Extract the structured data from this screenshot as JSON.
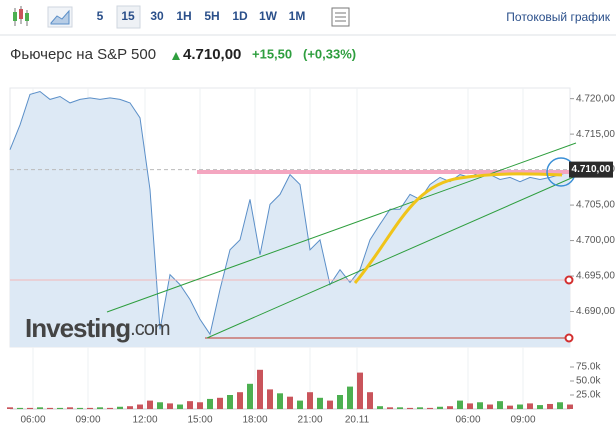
{
  "toolbar": {
    "intervals": [
      "5",
      "15",
      "30",
      "1H",
      "5H",
      "1D",
      "1W",
      "1M"
    ],
    "active": 1,
    "stream": "Потоковый график"
  },
  "header": {
    "name": "Фьючерс на S&P 500",
    "price": "4.710,00",
    "change": "+15,50",
    "change_pct": "(+0,33%)"
  },
  "chart_data": {
    "type": "line",
    "watermark": {
      "main": "Investing",
      "suffix": ".com"
    },
    "series": [
      {
        "color": "#5b8fc8",
        "fill": "#dde9f5",
        "values": [
          4712.8,
          4716.3,
          4720.6,
          4721,
          4719.9,
          4720.3,
          4719.4,
          4719.9,
          4720.1,
          4719.9,
          4720.1,
          4719.9,
          4719.4,
          4717.3,
          4707.2,
          4687.5,
          4695.2,
          4693.8,
          4691.7,
          4688.9,
          4686.8,
          4693.1,
          4698.7,
          4700.1,
          4705.8,
          4698,
          4705.1,
          4706.5,
          4709.3,
          4707.9,
          4698.7,
          4700.1,
          4693.8,
          4695.9,
          4694.1,
          4695.9,
          4700.1,
          4702.3,
          4704.4,
          4704.4,
          4706.5,
          4705.8,
          4707.9,
          4708.9,
          4708.3,
          4709.3,
          4708.9,
          4709.7,
          4709.3,
          4708.6,
          4708.9,
          4708.3,
          4708.9,
          4708.6,
          4708.9,
          4709.3,
          4709.7
        ]
      }
    ],
    "xlim": [
      0,
      56
    ],
    "xticks": [
      {
        "value": 2.3,
        "label": "06:00"
      },
      {
        "value": 7.8,
        "label": "09:00"
      },
      {
        "value": 13.5,
        "label": "12:00"
      },
      {
        "value": 19,
        "label": "15:00"
      },
      {
        "value": 24.5,
        "label": "18:00"
      },
      {
        "value": 30,
        "label": "21:00"
      },
      {
        "value": 34.7,
        "label": "20.11"
      },
      {
        "value": 45.8,
        "label": "06:00"
      },
      {
        "value": 51.3,
        "label": "09:00"
      }
    ],
    "ylim": [
      4685,
      4721.5
    ],
    "yticks": [
      {
        "value": 4720,
        "label": "4.720,00"
      },
      {
        "value": 4715,
        "label": "4.715,00"
      },
      {
        "value": 4710,
        "label": "4.710,00"
      },
      {
        "value": 4705,
        "label": "4.705,00"
      },
      {
        "value": 4700,
        "label": "4.700,00"
      },
      {
        "value": 4695,
        "label": "4.695,00"
      },
      {
        "value": 4690,
        "label": "4.690,00"
      }
    ],
    "price_label": {
      "value": 4710,
      "label": "4.710,00"
    },
    "grid": true,
    "volume": {
      "axis": "y2",
      "values": [
        3000,
        2000,
        2000,
        3000,
        2000,
        2000,
        3000,
        2000,
        2000,
        3000,
        2000,
        4000,
        5000,
        8000,
        15000,
        12000,
        10000,
        8000,
        14000,
        12000,
        18000,
        20000,
        25000,
        30000,
        45000,
        70000,
        35000,
        28000,
        22000,
        15000,
        30000,
        20000,
        15000,
        25000,
        40000,
        65000,
        30000,
        5000,
        3000,
        3000,
        2000,
        3000,
        2000,
        4000,
        5000,
        15000,
        10000,
        12000,
        8000,
        14000,
        6000,
        8000,
        10000,
        7000,
        9000,
        12000,
        8000
      ],
      "colors": [
        "#c9545b",
        "#4caf50",
        "#c9545b",
        "#4caf50",
        "#c9545b",
        "#4caf50",
        "#c9545b",
        "#4caf50",
        "#c9545b",
        "#4caf50",
        "#c9545b",
        "#4caf50",
        "#c9545b",
        "#c9545b",
        "#c9545b",
        "#4caf50",
        "#c9545b",
        "#4caf50",
        "#c9545b",
        "#c9545b",
        "#4caf50",
        "#c9545b",
        "#4caf50",
        "#c9545b",
        "#4caf50",
        "#c9545b",
        "#c9545b",
        "#4caf50",
        "#c9545b",
        "#4caf50",
        "#c9545b",
        "#4caf50",
        "#c9545b",
        "#4caf50",
        "#4caf50",
        "#c9545b",
        "#c9545b",
        "#4caf50",
        "#c9545b",
        "#4caf50",
        "#c9545b",
        "#4caf50",
        "#c9545b",
        "#4caf50",
        "#c9545b",
        "#4caf50",
        "#c9545b",
        "#4caf50",
        "#c9545b",
        "#4caf50",
        "#c9545b",
        "#4caf50",
        "#c9545b",
        "#4caf50",
        "#c9545b",
        "#4caf50",
        "#c9545b"
      ]
    },
    "y2lim": [
      0,
      87500
    ],
    "y2ticks": [
      {
        "value": 75000,
        "label": "75.0k"
      },
      {
        "value": 50000,
        "label": "50.0k"
      },
      {
        "value": 25000,
        "label": "25.0k"
      }
    ]
  }
}
